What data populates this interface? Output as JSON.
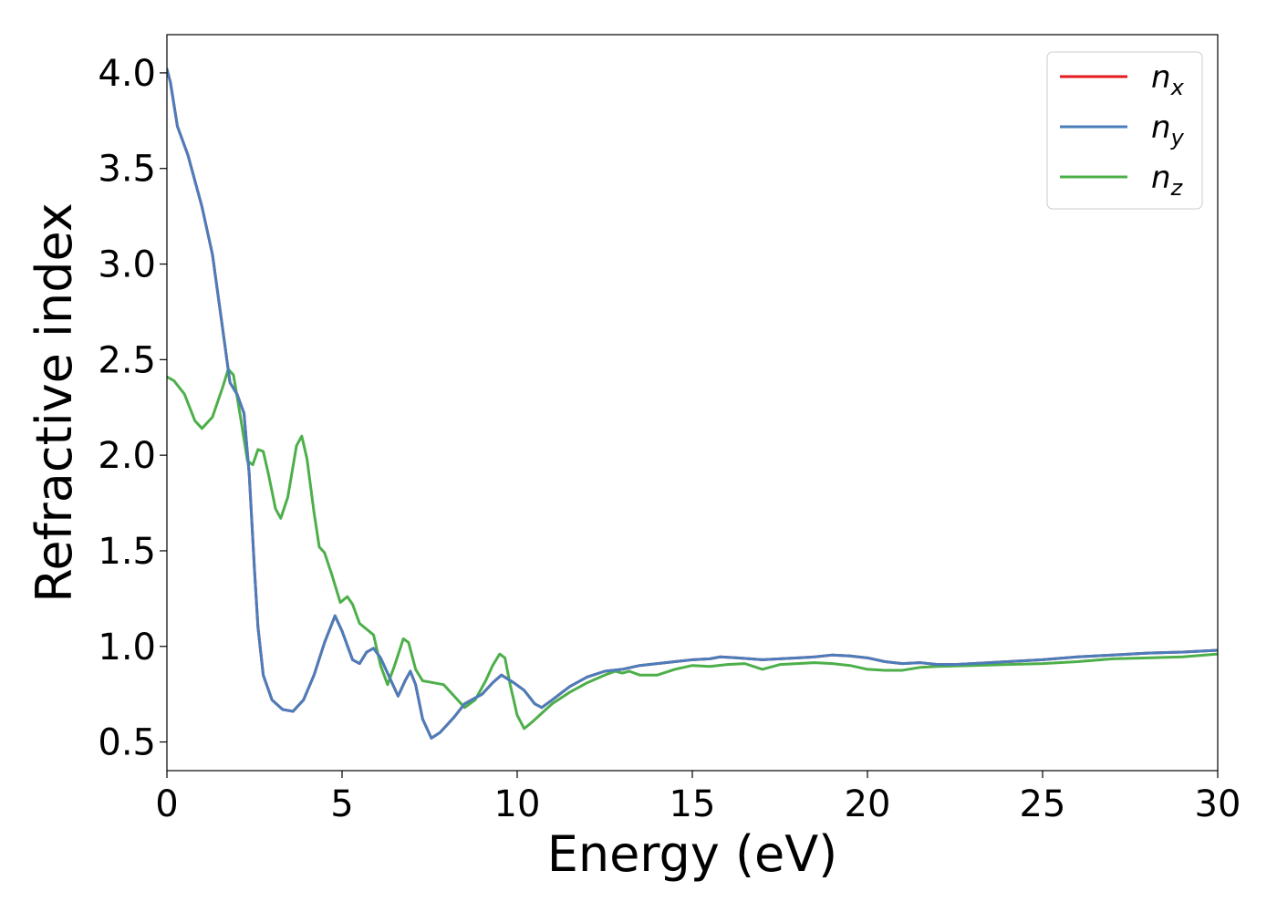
{
  "chart_data": {
    "type": "line",
    "xlabel": "Energy (eV)",
    "ylabel": "Refractive index",
    "xlim": [
      0,
      30
    ],
    "ylim": [
      0.35,
      4.2
    ],
    "xticks": [
      0,
      5,
      10,
      15,
      20,
      25,
      30
    ],
    "xtick_labels": [
      "0",
      "5",
      "10",
      "15",
      "20",
      "25",
      "30"
    ],
    "yticks": [
      0.5,
      1.0,
      1.5,
      2.0,
      2.5,
      3.0,
      3.5,
      4.0
    ],
    "ytick_labels": [
      "0.5",
      "1.0",
      "1.5",
      "2.0",
      "2.5",
      "3.0",
      "3.5",
      "4.0"
    ],
    "grid": false,
    "legend_position": "top-right",
    "series": [
      {
        "name": "n_x",
        "label_main": "n",
        "label_sub": "x",
        "color": "#e41a1c",
        "points": [
          [
            0,
            4.02
          ],
          [
            0.1,
            3.95
          ],
          [
            0.3,
            3.72
          ],
          [
            0.6,
            3.57
          ],
          [
            1.0,
            3.3
          ],
          [
            1.3,
            3.05
          ],
          [
            1.6,
            2.65
          ],
          [
            1.8,
            2.38
          ],
          [
            2.0,
            2.32
          ],
          [
            2.2,
            2.22
          ],
          [
            2.35,
            1.9
          ],
          [
            2.5,
            1.4
          ],
          [
            2.6,
            1.1
          ],
          [
            2.75,
            0.85
          ],
          [
            3.0,
            0.72
          ],
          [
            3.3,
            0.67
          ],
          [
            3.6,
            0.66
          ],
          [
            3.9,
            0.72
          ],
          [
            4.2,
            0.85
          ],
          [
            4.5,
            1.02
          ],
          [
            4.8,
            1.16
          ],
          [
            5.0,
            1.08
          ],
          [
            5.3,
            0.93
          ],
          [
            5.5,
            0.91
          ],
          [
            5.7,
            0.97
          ],
          [
            5.9,
            0.99
          ],
          [
            6.1,
            0.94
          ],
          [
            6.4,
            0.82
          ],
          [
            6.6,
            0.74
          ],
          [
            6.8,
            0.82
          ],
          [
            6.95,
            0.87
          ],
          [
            7.1,
            0.8
          ],
          [
            7.3,
            0.62
          ],
          [
            7.55,
            0.52
          ],
          [
            7.8,
            0.55
          ],
          [
            8.2,
            0.63
          ],
          [
            8.5,
            0.7
          ],
          [
            8.8,
            0.73
          ],
          [
            9.0,
            0.75
          ],
          [
            9.3,
            0.81
          ],
          [
            9.55,
            0.85
          ],
          [
            9.9,
            0.81
          ],
          [
            10.2,
            0.77
          ],
          [
            10.5,
            0.7
          ],
          [
            10.7,
            0.68
          ],
          [
            11.0,
            0.72
          ],
          [
            11.5,
            0.79
          ],
          [
            12.0,
            0.84
          ],
          [
            12.5,
            0.87
          ],
          [
            13.0,
            0.88
          ],
          [
            13.5,
            0.9
          ],
          [
            14.0,
            0.91
          ],
          [
            14.5,
            0.92
          ],
          [
            15.0,
            0.93
          ],
          [
            15.5,
            0.935
          ],
          [
            15.8,
            0.945
          ],
          [
            16.3,
            0.94
          ],
          [
            17.0,
            0.93
          ],
          [
            17.5,
            0.935
          ],
          [
            18.0,
            0.94
          ],
          [
            18.5,
            0.945
          ],
          [
            19.0,
            0.955
          ],
          [
            19.5,
            0.95
          ],
          [
            20.0,
            0.94
          ],
          [
            20.5,
            0.92
          ],
          [
            21.0,
            0.91
          ],
          [
            21.5,
            0.915
          ],
          [
            22.0,
            0.905
          ],
          [
            22.5,
            0.905
          ],
          [
            23.0,
            0.91
          ],
          [
            24.0,
            0.92
          ],
          [
            25.0,
            0.93
          ],
          [
            26.0,
            0.945
          ],
          [
            27.0,
            0.955
          ],
          [
            28.0,
            0.965
          ],
          [
            29.0,
            0.97
          ],
          [
            30.0,
            0.98
          ]
        ]
      },
      {
        "name": "n_y",
        "label_main": "n",
        "label_sub": "y",
        "color": "#4a7dbb",
        "points": [
          [
            0,
            4.02
          ],
          [
            0.1,
            3.95
          ],
          [
            0.3,
            3.72
          ],
          [
            0.6,
            3.57
          ],
          [
            1.0,
            3.3
          ],
          [
            1.3,
            3.05
          ],
          [
            1.6,
            2.65
          ],
          [
            1.8,
            2.38
          ],
          [
            2.0,
            2.32
          ],
          [
            2.2,
            2.22
          ],
          [
            2.35,
            1.9
          ],
          [
            2.5,
            1.4
          ],
          [
            2.6,
            1.1
          ],
          [
            2.75,
            0.85
          ],
          [
            3.0,
            0.72
          ],
          [
            3.3,
            0.67
          ],
          [
            3.6,
            0.66
          ],
          [
            3.9,
            0.72
          ],
          [
            4.2,
            0.85
          ],
          [
            4.5,
            1.02
          ],
          [
            4.8,
            1.16
          ],
          [
            5.0,
            1.08
          ],
          [
            5.3,
            0.93
          ],
          [
            5.5,
            0.91
          ],
          [
            5.7,
            0.97
          ],
          [
            5.9,
            0.99
          ],
          [
            6.1,
            0.94
          ],
          [
            6.4,
            0.82
          ],
          [
            6.6,
            0.74
          ],
          [
            6.8,
            0.82
          ],
          [
            6.95,
            0.87
          ],
          [
            7.1,
            0.8
          ],
          [
            7.3,
            0.62
          ],
          [
            7.55,
            0.52
          ],
          [
            7.8,
            0.55
          ],
          [
            8.2,
            0.63
          ],
          [
            8.5,
            0.7
          ],
          [
            8.8,
            0.73
          ],
          [
            9.0,
            0.75
          ],
          [
            9.3,
            0.81
          ],
          [
            9.55,
            0.85
          ],
          [
            9.9,
            0.81
          ],
          [
            10.2,
            0.77
          ],
          [
            10.5,
            0.7
          ],
          [
            10.7,
            0.68
          ],
          [
            11.0,
            0.72
          ],
          [
            11.5,
            0.79
          ],
          [
            12.0,
            0.84
          ],
          [
            12.5,
            0.87
          ],
          [
            13.0,
            0.88
          ],
          [
            13.5,
            0.9
          ],
          [
            14.0,
            0.91
          ],
          [
            14.5,
            0.92
          ],
          [
            15.0,
            0.93
          ],
          [
            15.5,
            0.935
          ],
          [
            15.8,
            0.945
          ],
          [
            16.3,
            0.94
          ],
          [
            17.0,
            0.93
          ],
          [
            17.5,
            0.935
          ],
          [
            18.0,
            0.94
          ],
          [
            18.5,
            0.945
          ],
          [
            19.0,
            0.955
          ],
          [
            19.5,
            0.95
          ],
          [
            20.0,
            0.94
          ],
          [
            20.5,
            0.92
          ],
          [
            21.0,
            0.91
          ],
          [
            21.5,
            0.915
          ],
          [
            22.0,
            0.905
          ],
          [
            22.5,
            0.905
          ],
          [
            23.0,
            0.91
          ],
          [
            24.0,
            0.92
          ],
          [
            25.0,
            0.93
          ],
          [
            26.0,
            0.945
          ],
          [
            27.0,
            0.955
          ],
          [
            28.0,
            0.965
          ],
          [
            29.0,
            0.97
          ],
          [
            30.0,
            0.98
          ]
        ]
      },
      {
        "name": "n_z",
        "label_main": "n",
        "label_sub": "z",
        "color": "#4daf4a",
        "points": [
          [
            0,
            2.41
          ],
          [
            0.2,
            2.39
          ],
          [
            0.5,
            2.32
          ],
          [
            0.8,
            2.18
          ],
          [
            1.0,
            2.14
          ],
          [
            1.3,
            2.2
          ],
          [
            1.6,
            2.36
          ],
          [
            1.75,
            2.45
          ],
          [
            1.9,
            2.42
          ],
          [
            2.1,
            2.2
          ],
          [
            2.3,
            1.97
          ],
          [
            2.45,
            1.95
          ],
          [
            2.6,
            2.03
          ],
          [
            2.75,
            2.02
          ],
          [
            2.9,
            1.9
          ],
          [
            3.1,
            1.72
          ],
          [
            3.25,
            1.67
          ],
          [
            3.45,
            1.78
          ],
          [
            3.7,
            2.05
          ],
          [
            3.85,
            2.1
          ],
          [
            4.0,
            1.98
          ],
          [
            4.2,
            1.7
          ],
          [
            4.35,
            1.52
          ],
          [
            4.5,
            1.49
          ],
          [
            4.7,
            1.38
          ],
          [
            4.95,
            1.23
          ],
          [
            5.15,
            1.26
          ],
          [
            5.3,
            1.22
          ],
          [
            5.5,
            1.12
          ],
          [
            5.7,
            1.09
          ],
          [
            5.9,
            1.06
          ],
          [
            6.1,
            0.9
          ],
          [
            6.3,
            0.8
          ],
          [
            6.5,
            0.9
          ],
          [
            6.75,
            1.04
          ],
          [
            6.9,
            1.02
          ],
          [
            7.1,
            0.88
          ],
          [
            7.3,
            0.82
          ],
          [
            7.6,
            0.81
          ],
          [
            7.9,
            0.8
          ],
          [
            8.2,
            0.74
          ],
          [
            8.5,
            0.68
          ],
          [
            8.8,
            0.72
          ],
          [
            9.1,
            0.82
          ],
          [
            9.3,
            0.9
          ],
          [
            9.5,
            0.96
          ],
          [
            9.65,
            0.94
          ],
          [
            9.8,
            0.8
          ],
          [
            10.0,
            0.64
          ],
          [
            10.2,
            0.57
          ],
          [
            10.4,
            0.6
          ],
          [
            10.7,
            0.65
          ],
          [
            11.0,
            0.7
          ],
          [
            11.5,
            0.76
          ],
          [
            12.0,
            0.81
          ],
          [
            12.5,
            0.85
          ],
          [
            12.8,
            0.87
          ],
          [
            13.0,
            0.86
          ],
          [
            13.2,
            0.87
          ],
          [
            13.5,
            0.85
          ],
          [
            14.0,
            0.85
          ],
          [
            14.5,
            0.88
          ],
          [
            15.0,
            0.9
          ],
          [
            15.5,
            0.895
          ],
          [
            16.0,
            0.905
          ],
          [
            16.5,
            0.91
          ],
          [
            17.0,
            0.88
          ],
          [
            17.5,
            0.905
          ],
          [
            18.0,
            0.91
          ],
          [
            18.5,
            0.915
          ],
          [
            19.0,
            0.91
          ],
          [
            19.5,
            0.9
          ],
          [
            20.0,
            0.88
          ],
          [
            20.5,
            0.875
          ],
          [
            21.0,
            0.875
          ],
          [
            21.5,
            0.89
          ],
          [
            22.0,
            0.895
          ],
          [
            23.0,
            0.9
          ],
          [
            24.0,
            0.905
          ],
          [
            25.0,
            0.91
          ],
          [
            26.0,
            0.92
          ],
          [
            27.0,
            0.935
          ],
          [
            28.0,
            0.94
          ],
          [
            29.0,
            0.945
          ],
          [
            30.0,
            0.96
          ]
        ]
      }
    ]
  }
}
